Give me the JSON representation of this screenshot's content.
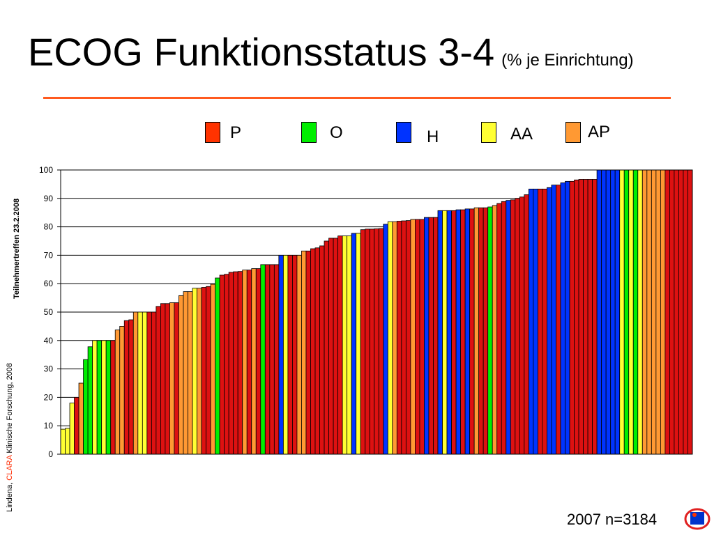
{
  "slide": {
    "title": "ECOG Funktionsstatus 3-4",
    "subtitle": "(% je Einrichtung)",
    "side_text_prefix": "Lindena, ",
    "side_text_clara": "CLARA",
    "side_text_suffix": " Klinische Forschung, 2008",
    "side_text_meeting": "Teilnehmertreffen 23.2.2008",
    "footer": "2007 n=3184"
  },
  "legend": [
    {
      "label": "P",
      "color": "#ff3300"
    },
    {
      "label": "O",
      "color": "#00ee00"
    },
    {
      "label": "H",
      "color": "#0033ff"
    },
    {
      "label": "AA",
      "color": "#ffff33"
    },
    {
      "label": "AP",
      "color": "#ff9933"
    }
  ],
  "colors": {
    "P": "#ff3300",
    "O": "#00ee00",
    "H": "#0033ff",
    "AA": "#ffff33",
    "AP": "#ff9933",
    "R": "#dd1111",
    "rule": "#ff5a1f"
  },
  "chart_data": {
    "type": "bar",
    "title": "",
    "xlabel": "",
    "ylabel": "",
    "ylim": [
      0,
      100
    ],
    "yticks": [
      0,
      10,
      20,
      30,
      40,
      50,
      60,
      70,
      80,
      90,
      100
    ],
    "grid": true,
    "bars": [
      {
        "v": 8.8,
        "c": "AA"
      },
      {
        "v": 9.1,
        "c": "AA"
      },
      {
        "v": 18,
        "c": "AA"
      },
      {
        "v": 20,
        "c": "R"
      },
      {
        "v": 25,
        "c": "AP"
      },
      {
        "v": 33.3,
        "c": "O"
      },
      {
        "v": 37.8,
        "c": "O"
      },
      {
        "v": 40,
        "c": "AA"
      },
      {
        "v": 40,
        "c": "O"
      },
      {
        "v": 40,
        "c": "AA"
      },
      {
        "v": 40,
        "c": "O"
      },
      {
        "v": 40,
        "c": "R"
      },
      {
        "v": 43.7,
        "c": "AP"
      },
      {
        "v": 45,
        "c": "AP"
      },
      {
        "v": 47,
        "c": "R"
      },
      {
        "v": 47.3,
        "c": "R"
      },
      {
        "v": 50,
        "c": "AP"
      },
      {
        "v": 50,
        "c": "AA"
      },
      {
        "v": 50,
        "c": "AA"
      },
      {
        "v": 50,
        "c": "R"
      },
      {
        "v": 50,
        "c": "R"
      },
      {
        "v": 52,
        "c": "R"
      },
      {
        "v": 53,
        "c": "R"
      },
      {
        "v": 53,
        "c": "R"
      },
      {
        "v": 53.3,
        "c": "AP"
      },
      {
        "v": 53.3,
        "c": "R"
      },
      {
        "v": 55.8,
        "c": "AP"
      },
      {
        "v": 57.2,
        "c": "AP"
      },
      {
        "v": 57.2,
        "c": "AP"
      },
      {
        "v": 58.4,
        "c": "AA"
      },
      {
        "v": 58.4,
        "c": "AP"
      },
      {
        "v": 58.7,
        "c": "R"
      },
      {
        "v": 59,
        "c": "R"
      },
      {
        "v": 59.8,
        "c": "AP"
      },
      {
        "v": 62,
        "c": "O"
      },
      {
        "v": 63,
        "c": "R"
      },
      {
        "v": 63.3,
        "c": "R"
      },
      {
        "v": 64,
        "c": "R"
      },
      {
        "v": 64.2,
        "c": "R"
      },
      {
        "v": 64.3,
        "c": "R"
      },
      {
        "v": 64.8,
        "c": "AP"
      },
      {
        "v": 64.8,
        "c": "R"
      },
      {
        "v": 65.3,
        "c": "AP"
      },
      {
        "v": 65.3,
        "c": "R"
      },
      {
        "v": 66.7,
        "c": "O"
      },
      {
        "v": 66.7,
        "c": "R"
      },
      {
        "v": 66.7,
        "c": "R"
      },
      {
        "v": 66.7,
        "c": "R"
      },
      {
        "v": 70,
        "c": "H"
      },
      {
        "v": 70,
        "c": "AA"
      },
      {
        "v": 70,
        "c": "R"
      },
      {
        "v": 70,
        "c": "R"
      },
      {
        "v": 70,
        "c": "AP"
      },
      {
        "v": 71.5,
        "c": "AP"
      },
      {
        "v": 71.5,
        "c": "R"
      },
      {
        "v": 72.3,
        "c": "R"
      },
      {
        "v": 72.6,
        "c": "R"
      },
      {
        "v": 73.3,
        "c": "R"
      },
      {
        "v": 75,
        "c": "R"
      },
      {
        "v": 76,
        "c": "R"
      },
      {
        "v": 76,
        "c": "R"
      },
      {
        "v": 76.8,
        "c": "R"
      },
      {
        "v": 76.8,
        "c": "AA"
      },
      {
        "v": 76.8,
        "c": "AA"
      },
      {
        "v": 77.7,
        "c": "H"
      },
      {
        "v": 77.7,
        "c": "AA"
      },
      {
        "v": 79,
        "c": "R"
      },
      {
        "v": 79.2,
        "c": "R"
      },
      {
        "v": 79.2,
        "c": "R"
      },
      {
        "v": 79.3,
        "c": "R"
      },
      {
        "v": 79.4,
        "c": "R"
      },
      {
        "v": 80.9,
        "c": "H"
      },
      {
        "v": 81.8,
        "c": "AA"
      },
      {
        "v": 81.8,
        "c": "AP"
      },
      {
        "v": 82,
        "c": "R"
      },
      {
        "v": 82.1,
        "c": "R"
      },
      {
        "v": 82.2,
        "c": "R"
      },
      {
        "v": 82.6,
        "c": "AP"
      },
      {
        "v": 82.6,
        "c": "R"
      },
      {
        "v": 82.6,
        "c": "R"
      },
      {
        "v": 83.3,
        "c": "H"
      },
      {
        "v": 83.3,
        "c": "R"
      },
      {
        "v": 83.3,
        "c": "R"
      },
      {
        "v": 85.7,
        "c": "H"
      },
      {
        "v": 85.7,
        "c": "AA"
      },
      {
        "v": 85.7,
        "c": "H"
      },
      {
        "v": 85.7,
        "c": "R"
      },
      {
        "v": 86,
        "c": "H"
      },
      {
        "v": 86,
        "c": "R"
      },
      {
        "v": 86.3,
        "c": "H"
      },
      {
        "v": 86.3,
        "c": "R"
      },
      {
        "v": 86.7,
        "c": "AP"
      },
      {
        "v": 86.7,
        "c": "R"
      },
      {
        "v": 86.7,
        "c": "R"
      },
      {
        "v": 87,
        "c": "O"
      },
      {
        "v": 87.5,
        "c": "AP"
      },
      {
        "v": 88.2,
        "c": "R"
      },
      {
        "v": 88.9,
        "c": "R"
      },
      {
        "v": 89.3,
        "c": "H"
      },
      {
        "v": 89.5,
        "c": "R"
      },
      {
        "v": 90,
        "c": "R"
      },
      {
        "v": 90.5,
        "c": "R"
      },
      {
        "v": 91.3,
        "c": "R"
      },
      {
        "v": 93.3,
        "c": "H"
      },
      {
        "v": 93.3,
        "c": "H"
      },
      {
        "v": 93.3,
        "c": "R"
      },
      {
        "v": 93.3,
        "c": "R"
      },
      {
        "v": 93.8,
        "c": "H"
      },
      {
        "v": 94.7,
        "c": "H"
      },
      {
        "v": 94.7,
        "c": "R"
      },
      {
        "v": 95.5,
        "c": "H"
      },
      {
        "v": 96,
        "c": "H"
      },
      {
        "v": 96,
        "c": "R"
      },
      {
        "v": 96.5,
        "c": "R"
      },
      {
        "v": 96.7,
        "c": "R"
      },
      {
        "v": 96.7,
        "c": "R"
      },
      {
        "v": 96.7,
        "c": "R"
      },
      {
        "v": 96.7,
        "c": "R"
      },
      {
        "v": 100,
        "c": "H"
      },
      {
        "v": 100,
        "c": "H"
      },
      {
        "v": 100,
        "c": "H"
      },
      {
        "v": 100,
        "c": "H"
      },
      {
        "v": 100,
        "c": "H"
      },
      {
        "v": 100,
        "c": "AA"
      },
      {
        "v": 100,
        "c": "O"
      },
      {
        "v": 100,
        "c": "AA"
      },
      {
        "v": 100,
        "c": "O"
      },
      {
        "v": 100,
        "c": "AA"
      },
      {
        "v": 100,
        "c": "AP"
      },
      {
        "v": 100,
        "c": "AP"
      },
      {
        "v": 100,
        "c": "AP"
      },
      {
        "v": 100,
        "c": "AP"
      },
      {
        "v": 100,
        "c": "AP"
      },
      {
        "v": 100,
        "c": "R"
      },
      {
        "v": 100,
        "c": "R"
      },
      {
        "v": 100,
        "c": "R"
      },
      {
        "v": 100,
        "c": "R"
      },
      {
        "v": 100,
        "c": "R"
      },
      {
        "v": 100,
        "c": "R"
      }
    ]
  }
}
